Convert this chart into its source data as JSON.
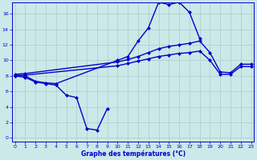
{
  "title": "Graphe des températures (°C)",
  "background_color": "#cce8e8",
  "grid_color": "#aacccc",
  "line_color": "#0000cc",
  "xlim": [
    -0.3,
    23.3
  ],
  "ylim": [
    -0.5,
    17.5
  ],
  "yticks": [
    0,
    2,
    4,
    6,
    8,
    10,
    12,
    14,
    16
  ],
  "xticks": [
    0,
    1,
    2,
    3,
    4,
    5,
    6,
    7,
    8,
    9,
    10,
    11,
    12,
    13,
    14,
    15,
    16,
    17,
    18,
    19,
    20,
    21,
    22,
    23
  ],
  "s_min_x": [
    0,
    1,
    2,
    3,
    4,
    5,
    6,
    7,
    8,
    9
  ],
  "s_min_y": [
    8.0,
    7.8,
    7.2,
    7.0,
    6.8,
    5.5,
    5.2,
    1.2,
    1.0,
    3.8
  ],
  "s_max_x": [
    0,
    1,
    2,
    3,
    4,
    10,
    11,
    12,
    13,
    14,
    15,
    16,
    17,
    18
  ],
  "s_max_y": [
    8.1,
    8.0,
    7.3,
    7.1,
    7.0,
    10.0,
    10.5,
    12.5,
    14.2,
    17.5,
    17.2,
    17.5,
    16.2,
    12.8
  ],
  "s_avg_hi_x": [
    0,
    1,
    10,
    11,
    12,
    13,
    14,
    15,
    16,
    17,
    18,
    19,
    20,
    21,
    22,
    23
  ],
  "s_avg_hi_y": [
    8.2,
    8.3,
    9.8,
    10.1,
    10.5,
    11.0,
    11.5,
    11.8,
    12.0,
    12.2,
    12.5,
    11.0,
    8.5,
    8.4,
    9.5,
    9.5
  ],
  "s_avg_lo_x": [
    0,
    1,
    10,
    11,
    12,
    13,
    14,
    15,
    16,
    17,
    18,
    19,
    20,
    21,
    22,
    23
  ],
  "s_avg_lo_y": [
    8.0,
    8.1,
    9.3,
    9.6,
    9.9,
    10.2,
    10.5,
    10.7,
    10.9,
    11.0,
    11.2,
    10.0,
    8.2,
    8.2,
    9.2,
    9.2
  ]
}
